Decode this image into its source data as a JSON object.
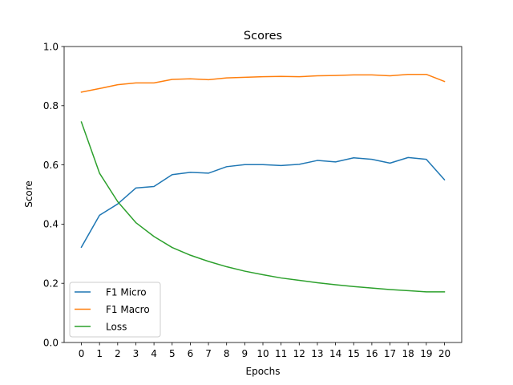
{
  "chart_data": {
    "type": "line",
    "title": "Scores",
    "xlabel": "Epochs",
    "ylabel": "Score",
    "xlim": [
      -0.95,
      20.95
    ],
    "ylim": [
      0,
      1
    ],
    "grid": false,
    "legend_position": "lower-left",
    "x": [
      0,
      1,
      2,
      3,
      4,
      5,
      6,
      7,
      8,
      9,
      10,
      11,
      12,
      13,
      14,
      15,
      16,
      17,
      18,
      19,
      20
    ],
    "xticks": [
      "0",
      "1",
      "2",
      "3",
      "4",
      "5",
      "6",
      "7",
      "8",
      "9",
      "10",
      "11",
      "12",
      "13",
      "14",
      "15",
      "16",
      "17",
      "18",
      "19",
      "20"
    ],
    "yticks": [
      {
        "value": 0.0,
        "label": "0.0"
      },
      {
        "value": 0.2,
        "label": "0.2"
      },
      {
        "value": 0.4,
        "label": "0.4"
      },
      {
        "value": 0.6,
        "label": "0.6"
      },
      {
        "value": 0.8,
        "label": "0.8"
      },
      {
        "value": 1.0,
        "label": "1.0"
      }
    ],
    "series": [
      {
        "name": "F1 Micro",
        "color": "#1f77b4",
        "values": [
          0.322,
          0.43,
          0.468,
          0.522,
          0.527,
          0.567,
          0.575,
          0.572,
          0.594,
          0.601,
          0.601,
          0.598,
          0.602,
          0.615,
          0.61,
          0.624,
          0.619,
          0.606,
          0.625,
          0.619,
          0.55
        ]
      },
      {
        "name": "F1 Macro",
        "color": "#ff7f0e",
        "values": [
          0.846,
          0.858,
          0.871,
          0.877,
          0.877,
          0.889,
          0.891,
          0.888,
          0.894,
          0.896,
          0.898,
          0.899,
          0.898,
          0.901,
          0.902,
          0.904,
          0.904,
          0.901,
          0.906,
          0.906,
          0.882
        ]
      },
      {
        "name": "Loss",
        "color": "#2ca02c",
        "values": [
          0.745,
          0.572,
          0.476,
          0.405,
          0.358,
          0.321,
          0.295,
          0.274,
          0.256,
          0.241,
          0.229,
          0.218,
          0.21,
          0.202,
          0.195,
          0.189,
          0.184,
          0.179,
          0.175,
          0.171,
          0.171
        ]
      }
    ]
  }
}
